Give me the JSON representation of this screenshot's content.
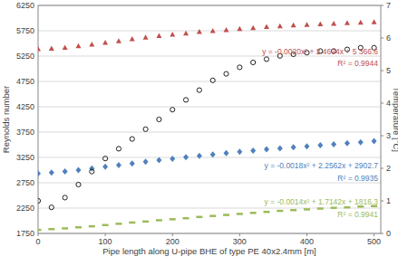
{
  "chart_data": {
    "type": "scatter",
    "x_label": "Pipe length along U-pipe BHE of type PE 40x2.4mm [m]",
    "y_label": "Reynolds number",
    "y2_label": "Temperature [°C]",
    "x": [
      0,
      20,
      40,
      60,
      80,
      100,
      120,
      140,
      160,
      180,
      200,
      220,
      240,
      260,
      280,
      300,
      320,
      340,
      360,
      380,
      400,
      420,
      440,
      460,
      480,
      500
    ],
    "xlim": [
      0,
      510
    ],
    "xticks": [
      0,
      100,
      200,
      300,
      400,
      500
    ],
    "ylim": [
      1750,
      6250
    ],
    "yticks": [
      1750,
      2250,
      2750,
      3250,
      3750,
      4250,
      4750,
      5250,
      5750,
      6250
    ],
    "y2lim": [
      0,
      7
    ],
    "y2ticks": [
      0,
      1,
      2,
      3,
      4,
      5,
      6,
      7
    ],
    "grid": true,
    "series": [
      {
        "color": "#c0504d",
        "marker": "triangle",
        "equation": "y = -0.0020x² + 2.4634x + 5 366.6",
        "r2_label": "R² = 0.9944",
        "values": [
          5395,
          5400,
          5420,
          5450,
          5480,
          5520,
          5550,
          5590,
          5620,
          5650,
          5680,
          5700,
          5730,
          5750,
          5770,
          5790,
          5810,
          5830,
          5845,
          5860,
          5870,
          5885,
          5895,
          5905,
          5915,
          5925
        ]
      },
      {
        "color": "#4f81bd",
        "marker": "diamond",
        "equation": "y = -0.0018x² + 2.2562x + 2902.7",
        "r2_label": "R² = 0.9935",
        "values": [
          2935,
          2950,
          2975,
          3000,
          3030,
          3065,
          3100,
          3130,
          3165,
          3195,
          3225,
          3255,
          3280,
          3310,
          3335,
          3360,
          3385,
          3410,
          3430,
          3450,
          3470,
          3490,
          3510,
          3530,
          3550,
          3570
        ]
      },
      {
        "color": "#9bbb59",
        "marker": "dash",
        "equation": "y = -0.0014x² + 1.7142x + 1816.3",
        "r2_label": "R² = 0.9941",
        "values": [
          1820,
          1835,
          1850,
          1870,
          1890,
          1915,
          1940,
          1965,
          1985,
          2010,
          2030,
          2050,
          2075,
          2095,
          2115,
          2135,
          2155,
          2175,
          2195,
          2210,
          2225,
          2240,
          2255,
          2265,
          2280,
          2290
        ]
      },
      {
        "color": "#222222",
        "marker": "circle",
        "axis": "y2",
        "values": [
          1.0,
          0.8,
          1.1,
          1.5,
          1.9,
          2.3,
          2.6,
          2.9,
          3.2,
          3.5,
          3.8,
          4.1,
          4.4,
          4.7,
          4.9,
          5.1,
          5.25,
          5.35,
          5.45,
          5.5,
          5.55,
          5.6,
          5.6,
          5.65,
          5.7,
          5.7
        ]
      }
    ]
  }
}
